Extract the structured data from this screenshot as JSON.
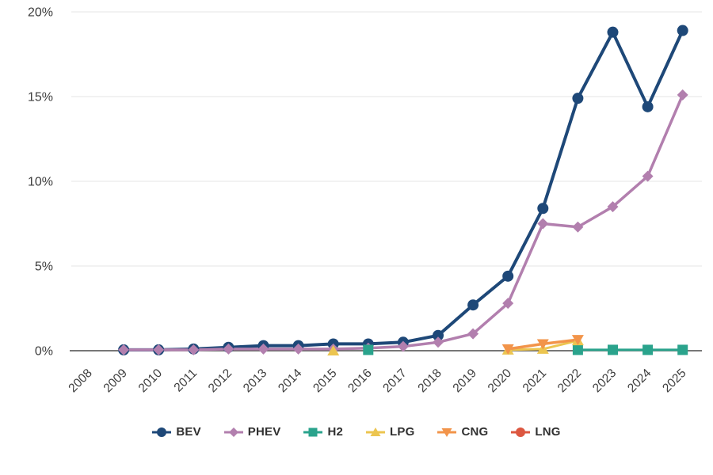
{
  "chart_data": {
    "type": "line",
    "title": "",
    "xlabel": "",
    "ylabel": "",
    "x_categories": [
      "2008",
      "2009",
      "2010",
      "2011",
      "2012",
      "2013",
      "2014",
      "2015",
      "2016",
      "2017",
      "2018",
      "2019",
      "2020",
      "2021",
      "2022",
      "2023",
      "2024",
      "2025"
    ],
    "y_ticks": [
      0,
      5,
      10,
      15,
      20
    ],
    "y_tick_labels": [
      "0%",
      "5%",
      "10%",
      "15%",
      "20%"
    ],
    "ylim": [
      0,
      20
    ],
    "grid": "horizontal-only",
    "legend_position": "bottom-center",
    "style": {
      "background": "#ffffff",
      "axis_line_color": "#4a4a4a",
      "gridline_color": "#e5e5e5",
      "tick_label_color": "#3d3d3d",
      "legend_text_color": "#303030"
    },
    "series": [
      {
        "name": "BEV",
        "color": "#1e4878",
        "marker": "circle",
        "values": [
          null,
          0.05,
          0.05,
          0.1,
          0.2,
          0.3,
          0.3,
          0.4,
          0.4,
          0.5,
          0.9,
          2.7,
          4.4,
          8.4,
          14.9,
          18.8,
          14.4,
          18.9
        ]
      },
      {
        "name": "PHEV",
        "color": "#b27fae",
        "marker": "diamond",
        "values": [
          null,
          0.05,
          0.05,
          0.05,
          0.1,
          0.1,
          0.1,
          0.1,
          0.15,
          0.25,
          0.5,
          1.0,
          2.8,
          7.5,
          7.3,
          8.5,
          10.3,
          15.1
        ]
      },
      {
        "name": "H2",
        "color": "#2aa38c",
        "marker": "square",
        "values": [
          null,
          null,
          null,
          null,
          null,
          null,
          null,
          null,
          0.05,
          null,
          null,
          null,
          null,
          null,
          0.05,
          0.05,
          0.05,
          0.05
        ]
      },
      {
        "name": "LPG",
        "color": "#ecc550",
        "marker": "triangle-up",
        "values": [
          null,
          null,
          null,
          null,
          null,
          null,
          null,
          0.0,
          null,
          null,
          null,
          null,
          0.05,
          0.1,
          0.6,
          null,
          null,
          null
        ]
      },
      {
        "name": "CNG",
        "color": "#f2944a",
        "marker": "triangle-down",
        "values": [
          null,
          null,
          null,
          null,
          null,
          null,
          null,
          null,
          null,
          null,
          null,
          null,
          0.1,
          0.4,
          0.65,
          null,
          null,
          null
        ]
      },
      {
        "name": "LNG",
        "color": "#dc5740",
        "marker": "circle",
        "values": [
          null,
          null,
          null,
          null,
          null,
          null,
          null,
          null,
          null,
          null,
          null,
          null,
          null,
          null,
          null,
          null,
          null,
          null
        ]
      }
    ]
  }
}
